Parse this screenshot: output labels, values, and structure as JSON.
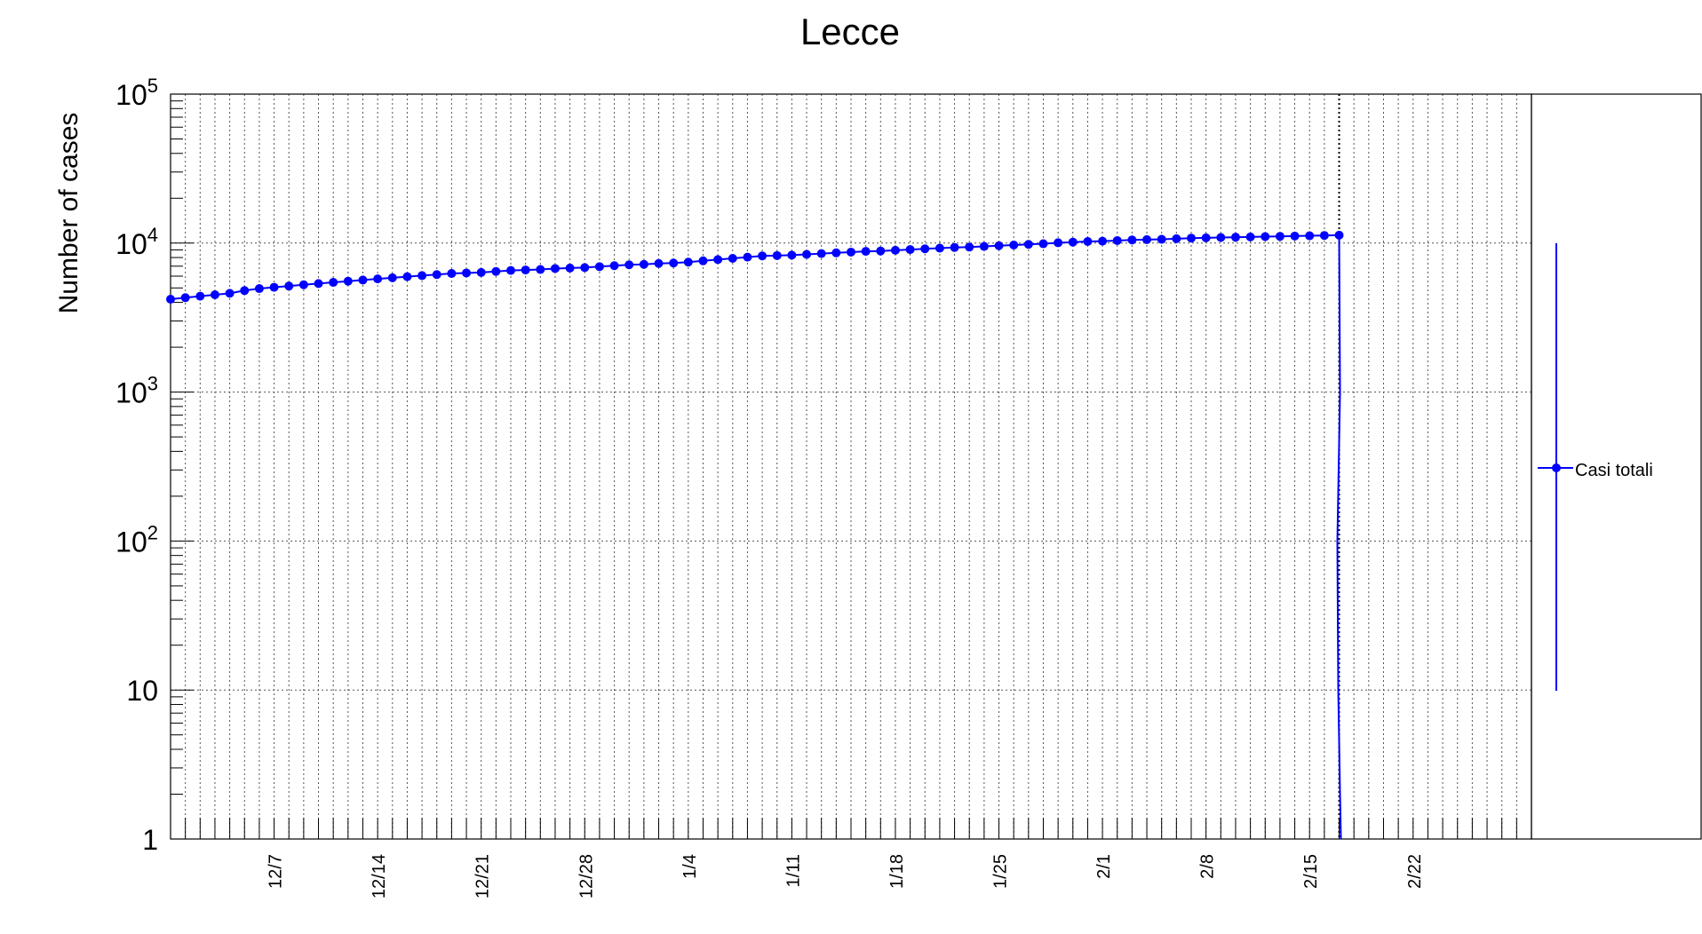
{
  "chart_data": {
    "type": "line",
    "title": "Lecce",
    "ylabel": "Number of cases",
    "xlabel": "",
    "y_scale": "log",
    "ylim": [
      1,
      100000
    ],
    "y_ticks": [
      {
        "value": 100000,
        "base": "10",
        "exp": "5"
      },
      {
        "value": 10000,
        "base": "10",
        "exp": "4"
      },
      {
        "value": 1000,
        "base": "10",
        "exp": "3"
      },
      {
        "value": 100,
        "base": "10",
        "exp": "2"
      },
      {
        "value": 10,
        "base": "10",
        "exp": ""
      },
      {
        "value": 1,
        "base": "1",
        "exp": ""
      }
    ],
    "x_ticks": [
      "12/7",
      "12/14",
      "12/21",
      "12/28",
      "1/4",
      "1/11",
      "1/18",
      "1/25",
      "2/1",
      "2/8",
      "2/15",
      "2/22"
    ],
    "x_range_days": [
      0,
      92
    ],
    "first_date": "11/30",
    "grid": true,
    "legend_position": "right",
    "vertical_marker_date": "2/17",
    "series": [
      {
        "name": "Casi totali",
        "color": "#0000ff",
        "start_date": "11/30",
        "values": [
          4200,
          4300,
          4400,
          4500,
          4600,
          4800,
          4950,
          5050,
          5150,
          5250,
          5350,
          5450,
          5550,
          5650,
          5750,
          5850,
          5950,
          6050,
          6150,
          6250,
          6300,
          6350,
          6450,
          6550,
          6600,
          6650,
          6750,
          6800,
          6850,
          6950,
          7050,
          7150,
          7200,
          7300,
          7350,
          7450,
          7600,
          7750,
          7900,
          8050,
          8200,
          8250,
          8300,
          8400,
          8500,
          8600,
          8700,
          8800,
          8850,
          8950,
          9050,
          9150,
          9250,
          9350,
          9400,
          9500,
          9600,
          9700,
          9800,
          9900,
          10050,
          10150,
          10250,
          10300,
          10400,
          10500,
          10550,
          10600,
          10700,
          10800,
          10850,
          10900,
          10950,
          11000,
          11050,
          11100,
          11150,
          11200,
          11250,
          11300
        ],
        "dropoff_date": "2/17"
      }
    ]
  }
}
